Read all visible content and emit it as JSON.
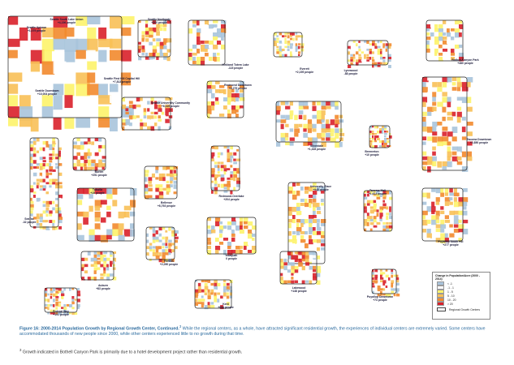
{
  "centers": [
    {
      "id": "seattle-south-lake-union",
      "name": "Seattle South Lake Union",
      "pop": "+4,156 people"
    },
    {
      "id": "seattle-uptown",
      "name": "Seattle Uptown",
      "pop": "+1,079 people"
    },
    {
      "id": "seattle-northgate",
      "name": "Seattle Northgate",
      "pop": "+860 people"
    },
    {
      "id": "kirkland-totem-lake",
      "name": "Kirkland Totem Lake",
      "pop": "-115 people"
    },
    {
      "id": "seattle-first-hill",
      "name": "Seattle First Hill Capitol Hill",
      "pop": "+7,813 people"
    },
    {
      "id": "seattle-downtown",
      "name": "Seattle Downtown",
      "pop": "+10,004 people"
    },
    {
      "id": "redmond-downtown",
      "name": "Redmond Downtown",
      "pop": "+3,279 people"
    },
    {
      "id": "seattle-university-community",
      "name": "Seattle University Community",
      "pop": "+6,119 people"
    },
    {
      "id": "everett",
      "name": "Everett",
      "pop": "+2,195 people"
    },
    {
      "id": "lynnwood",
      "name": "Lynnwood",
      "pop": "-88 people"
    },
    {
      "id": "bothell-canyon-park",
      "name": "Bothell Canyon Park",
      "pop": "+480 people"
    },
    {
      "id": "silverdale",
      "name": "Silverdale",
      "pop": "+1,328 people"
    },
    {
      "id": "bremerton",
      "name": "Bremerton",
      "pop": "+10 people"
    },
    {
      "id": "tacoma-downtown",
      "name": "Tacoma Downtown",
      "pop": "+2,850 people"
    },
    {
      "id": "burien",
      "name": "Burien",
      "pop": "+251 people"
    },
    {
      "id": "tukwila",
      "name": "Tukwila",
      "pop": "+15 people"
    },
    {
      "id": "bellevue",
      "name": "Bellevue",
      "pop": "+8,793 people"
    },
    {
      "id": "redmond-overlake",
      "name": "Redmond-Overlake",
      "pop": "+204 people"
    },
    {
      "id": "seatac",
      "name": "SeaTac",
      "pop": "-32 people"
    },
    {
      "id": "issaquah",
      "name": "Issaquah",
      "pop": "0 people"
    },
    {
      "id": "university-place",
      "name": "University Place",
      "pop": "+940 people"
    },
    {
      "id": "tacoma-mall",
      "name": "Tacoma Mall",
      "pop": "+1,613 people"
    },
    {
      "id": "puyallup-south-hill",
      "name": "Puyallup South Hill",
      "pop": "+277 people"
    },
    {
      "id": "renton",
      "name": "Renton",
      "pop": "+2,090 people"
    },
    {
      "id": "auburn",
      "name": "Auburn",
      "pop": "+83 people"
    },
    {
      "id": "kent",
      "name": "Kent",
      "pop": "+694 people"
    },
    {
      "id": "lakewood",
      "name": "Lakewood",
      "pop": "+148 people"
    },
    {
      "id": "puyallup-downtown",
      "name": "Puyallup Downtown",
      "pop": "+73 people"
    },
    {
      "id": "federal-way",
      "name": "Federal Way",
      "pop": "+191 people"
    }
  ],
  "legend": {
    "title": "Change in Population/Acre (2000 - 2014)",
    "classes": [
      {
        "label": "< -1",
        "color": "#a9c4dc"
      },
      {
        "label": "-1 - 1",
        "color": "#ffffff"
      },
      {
        "label": "1 - 5",
        "color": "#fdf36a"
      },
      {
        "label": "5 - 10",
        "color": "#f8c057"
      },
      {
        "label": "10 - 20",
        "color": "#f28a2e"
      },
      {
        "label": "> 20",
        "color": "#d9202a"
      }
    ],
    "boundary_label": "Regional Growth Centers"
  },
  "caption": {
    "figure": "Figure 16: 2000-2014 Population Growth by Regional Growth Center, Continued.",
    "marker": "3",
    "body": " While the regional centers, as a whole, have attracted significant residential growth, the experiences of individual centers are extremely varied. Some centers have accommodated thousands of new people since 2000, while other centers experienced little to no growth during that time."
  },
  "footnote": {
    "marker": "3",
    "text": " Growth indicated in Bothell Canyon Park is primarily due to a hotel development project rather than residential growth."
  }
}
